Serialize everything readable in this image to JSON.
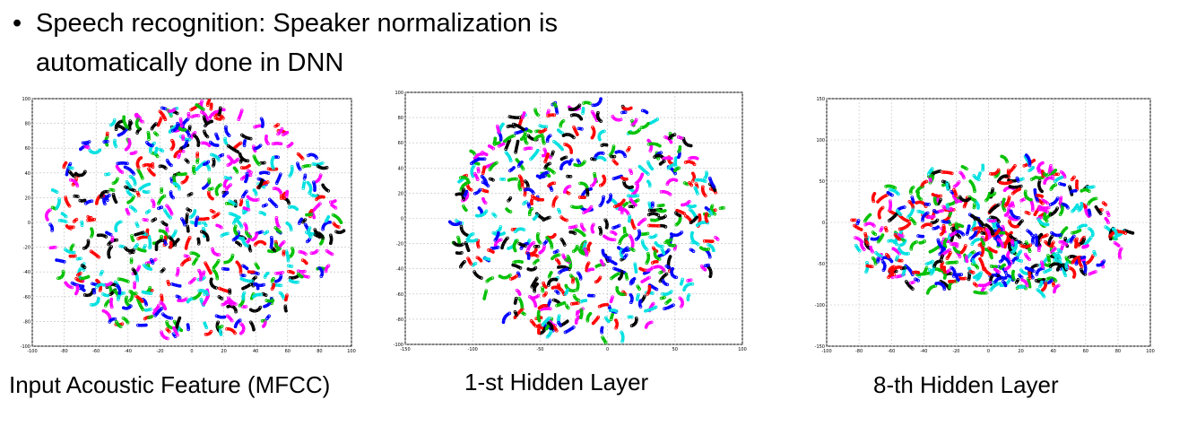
{
  "slide": {
    "bullet_symbol": "•",
    "bullet_line1": "Speech recognition: Speaker normalization is",
    "bullet_line2": "automatically done in DNN"
  },
  "palette": [
    "#ff0000",
    "#00c000",
    "#0000ff",
    "#00e0e0",
    "#ff00ff",
    "#000000"
  ],
  "chart_data": [
    {
      "type": "scatter",
      "caption": "Input Acoustic Feature (MFCC)",
      "xlim": [
        -100,
        100
      ],
      "ylim": [
        -100,
        100
      ],
      "xticks": [
        -100,
        -80,
        -60,
        -40,
        -20,
        0,
        20,
        40,
        60,
        80,
        100
      ],
      "yticks": [
        -100,
        -80,
        -60,
        -40,
        -20,
        0,
        20,
        40,
        60,
        80,
        100
      ],
      "grid": true,
      "point_cloud": {
        "shape": "ellipse",
        "center": [
          0,
          0
        ],
        "radius": [
          92,
          96
        ],
        "points": 520
      }
    },
    {
      "type": "scatter",
      "caption": "1-st Hidden Layer",
      "xlim": [
        -150,
        100
      ],
      "ylim": [
        -100,
        100
      ],
      "xticks": [
        -150,
        -100,
        -50,
        0,
        50,
        100
      ],
      "yticks": [
        -100,
        -80,
        -60,
        -40,
        -20,
        0,
        20,
        40,
        60,
        80,
        100
      ],
      "grid": true,
      "point_cloud": {
        "shape": "ellipse",
        "center": [
          -15,
          0
        ],
        "radius": [
          100,
          95
        ],
        "points": 480
      }
    },
    {
      "type": "scatter",
      "caption": "8-th Hidden Layer",
      "xlim": [
        -100,
        100
      ],
      "ylim": [
        -150,
        150
      ],
      "xticks": [
        -100,
        -80,
        -60,
        -40,
        -20,
        0,
        20,
        40,
        60,
        80,
        100
      ],
      "yticks": [
        -150,
        -100,
        -50,
        0,
        50,
        100,
        150
      ],
      "grid": true,
      "point_cloud": {
        "shape": "clusters",
        "center": [
          0,
          -20
        ],
        "radius": [
          85,
          120
        ],
        "points": 460
      }
    }
  ]
}
